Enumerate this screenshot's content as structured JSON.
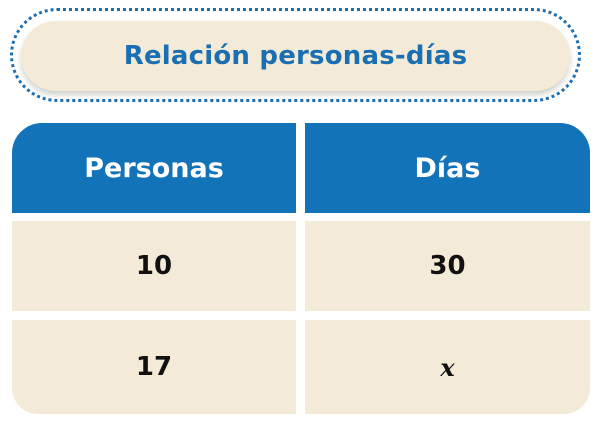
{
  "title": "Relación personas-días",
  "table": {
    "headers": [
      "Personas",
      "Días"
    ],
    "rows": [
      [
        "10",
        "30"
      ],
      [
        "17",
        "x"
      ]
    ]
  },
  "colors": {
    "accent": "#1a6fb3",
    "header_bg": "#1373b9",
    "cell_bg": "#f3ebd7"
  }
}
